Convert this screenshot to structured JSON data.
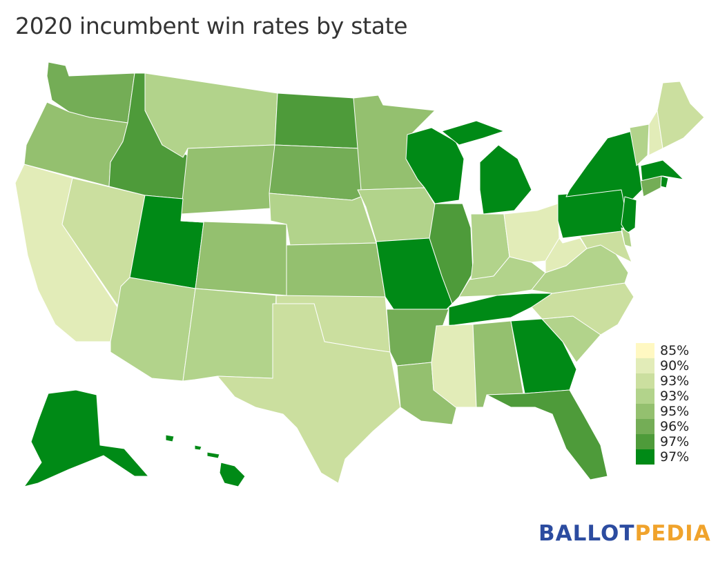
{
  "title": "2020 incumbent win rates by state",
  "colors": {
    "c85": "#fff8c2",
    "c90": "#e2ecb8",
    "c93a": "#cbdf9f",
    "c93b": "#b2d38b",
    "c95": "#94c06f",
    "c96": "#74ad56",
    "c97a": "#4e9b3a",
    "c97b": "#008a16"
  },
  "legend": [
    {
      "label": "85%",
      "color": "#fff8c2"
    },
    {
      "label": "90%",
      "color": "#e2ecb8"
    },
    {
      "label": "93%",
      "color": "#cbdf9f"
    },
    {
      "label": "93%",
      "color": "#b2d38b"
    },
    {
      "label": "95%",
      "color": "#94c06f"
    },
    {
      "label": "96%",
      "color": "#74ad56"
    },
    {
      "label": "97%",
      "color": "#4e9b3a"
    },
    {
      "label": "97%",
      "color": "#008a16"
    }
  ],
  "states": [
    {
      "code": "WA",
      "color": "#74ad56"
    },
    {
      "code": "OR",
      "color": "#94c06f"
    },
    {
      "code": "CA",
      "color": "#e2ecb8"
    },
    {
      "code": "NV",
      "color": "#cbdf9f"
    },
    {
      "code": "ID",
      "color": "#4e9b3a"
    },
    {
      "code": "MT",
      "color": "#b2d38b"
    },
    {
      "code": "WY",
      "color": "#94c06f"
    },
    {
      "code": "UT",
      "color": "#008a16"
    },
    {
      "code": "AZ",
      "color": "#b2d38b"
    },
    {
      "code": "CO",
      "color": "#94c06f"
    },
    {
      "code": "NM",
      "color": "#b2d38b"
    },
    {
      "code": "ND",
      "color": "#4e9b3a"
    },
    {
      "code": "SD",
      "color": "#74ad56"
    },
    {
      "code": "NE",
      "color": "#b2d38b"
    },
    {
      "code": "KS",
      "color": "#94c06f"
    },
    {
      "code": "OK",
      "color": "#cbdf9f"
    },
    {
      "code": "TX",
      "color": "#cbdf9f"
    },
    {
      "code": "MN",
      "color": "#94c06f"
    },
    {
      "code": "IA",
      "color": "#b2d38b"
    },
    {
      "code": "MO",
      "color": "#008a16"
    },
    {
      "code": "AR",
      "color": "#74ad56"
    },
    {
      "code": "LA",
      "color": "#94c06f"
    },
    {
      "code": "WI",
      "color": "#008a16"
    },
    {
      "code": "IL",
      "color": "#4e9b3a"
    },
    {
      "code": "MI",
      "color": "#008a16"
    },
    {
      "code": "IN",
      "color": "#b2d38b"
    },
    {
      "code": "OH",
      "color": "#e2ecb8"
    },
    {
      "code": "KY",
      "color": "#b2d38b"
    },
    {
      "code": "TN",
      "color": "#008a16"
    },
    {
      "code": "MS",
      "color": "#e2ecb8"
    },
    {
      "code": "AL",
      "color": "#94c06f"
    },
    {
      "code": "GA",
      "color": "#008a16"
    },
    {
      "code": "FL",
      "color": "#4e9b3a"
    },
    {
      "code": "SC",
      "color": "#b2d38b"
    },
    {
      "code": "NC",
      "color": "#cbdf9f"
    },
    {
      "code": "VA",
      "color": "#b2d38b"
    },
    {
      "code": "WV",
      "color": "#e2ecb8"
    },
    {
      "code": "PA",
      "color": "#008a16"
    },
    {
      "code": "NY",
      "color": "#008a16"
    },
    {
      "code": "VT",
      "color": "#b2d38b"
    },
    {
      "code": "NH",
      "color": "#e2ecb8"
    },
    {
      "code": "ME",
      "color": "#cbdf9f"
    },
    {
      "code": "MA",
      "color": "#008a16"
    },
    {
      "code": "RI",
      "color": "#008a16"
    },
    {
      "code": "CT",
      "color": "#74ad56"
    },
    {
      "code": "NJ",
      "color": "#008a16"
    },
    {
      "code": "DE",
      "color": "#b2d38b"
    },
    {
      "code": "MD",
      "color": "#cbdf9f"
    },
    {
      "code": "AK",
      "color": "#008a16"
    },
    {
      "code": "HI",
      "color": "#008a16"
    }
  ],
  "logo": {
    "part1": "BALLOT",
    "part2": "PEDIA"
  }
}
